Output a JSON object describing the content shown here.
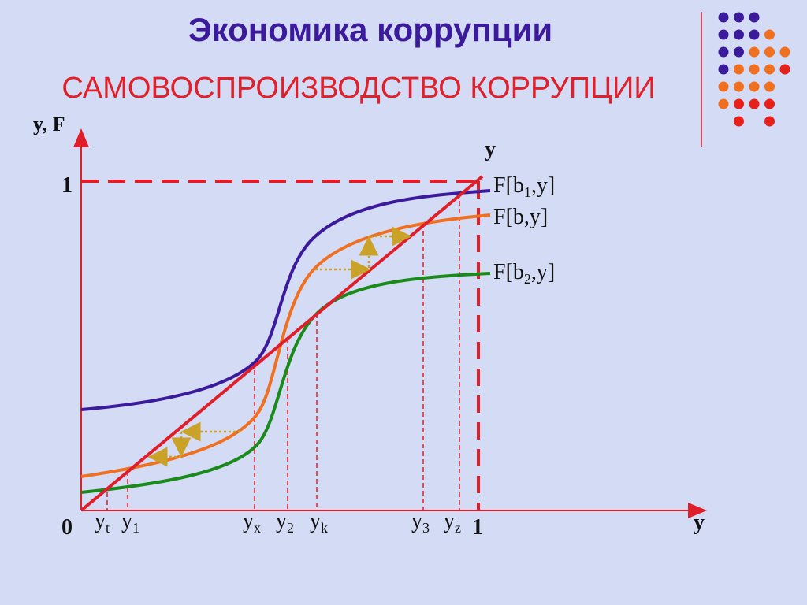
{
  "header": {
    "title": "Экономика коррупции",
    "subtitle": "САМОВОСПРОИЗВОДСТВО КОРРУПЦИИ"
  },
  "axes": {
    "y_label": "y, F",
    "x_label": "y",
    "diagonal_label": "y",
    "origin": "0",
    "y_one": "1",
    "x_one": "1"
  },
  "curves": [
    {
      "parts": [
        "F[b",
        "1",
        ",y]"
      ]
    },
    {
      "parts": [
        "F[b,y]"
      ]
    },
    {
      "parts": [
        "F[b",
        "2",
        ",y]"
      ]
    }
  ],
  "x_marks": [
    {
      "base": "y",
      "sub": "t"
    },
    {
      "base": "y",
      "sub": "1"
    },
    {
      "base": "y",
      "sub": "x"
    },
    {
      "base": "y",
      "sub": "2"
    },
    {
      "base": "y",
      "sub": "k"
    },
    {
      "base": "y",
      "sub": "3"
    },
    {
      "base": "y",
      "sub": "z"
    }
  ]
}
